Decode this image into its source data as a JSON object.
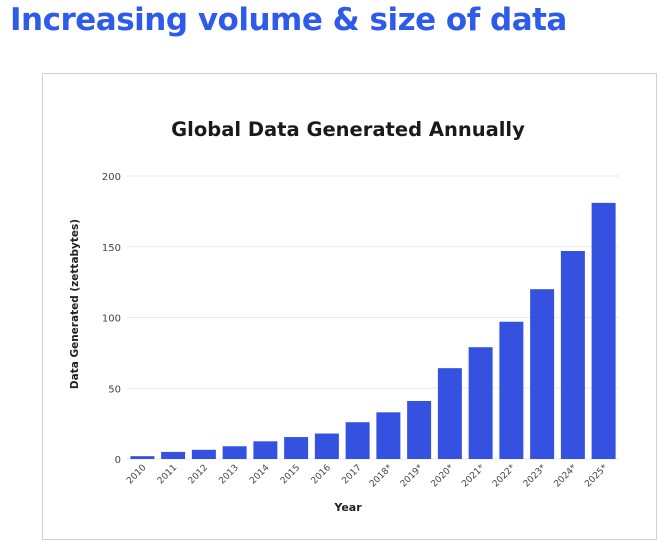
{
  "slide": {
    "title": "Increasing volume & size of data"
  },
  "colors": {
    "title": "#2f5bea",
    "bar": "#3551e0",
    "grid": "#e8eaee",
    "axis_text": "#444444",
    "chart_title": "#1a1a1a"
  },
  "chart_data": {
    "type": "bar",
    "title": "Global Data Generated Annually",
    "xlabel": "Year",
    "ylabel": "Data Generated (zettabytes)",
    "ylim": [
      0,
      200
    ],
    "yticks": [
      0,
      50,
      100,
      150,
      200
    ],
    "grid": true,
    "categories": [
      "2010",
      "2011",
      "2012",
      "2013",
      "2014",
      "2015",
      "2016",
      "2017",
      "2018*",
      "2019*",
      "2020*",
      "2021*",
      "2022*",
      "2023*",
      "2024*",
      "2025*"
    ],
    "values": [
      2,
      5,
      6.5,
      9,
      12.5,
      15.5,
      18,
      26,
      33,
      41,
      64.2,
      79,
      97,
      120,
      147,
      181
    ]
  }
}
